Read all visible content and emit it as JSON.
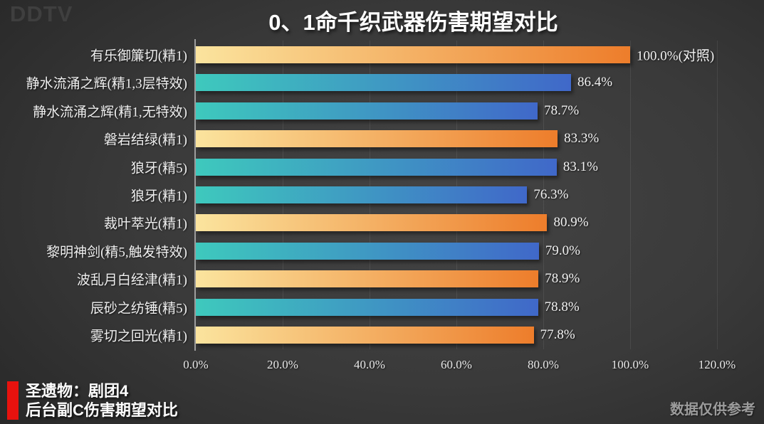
{
  "watermark": "DDTV",
  "title": "0、1命千织武器伤害期望对比",
  "chart_data": {
    "type": "bar",
    "orientation": "horizontal",
    "title": "0、1命千织武器伤害期望对比",
    "xlim": [
      0,
      120
    ],
    "grid": true,
    "legend": "none",
    "x_tick_labels": [
      "0.0%",
      "20.0%",
      "40.0%",
      "60.0%",
      "80.0%",
      "100.0%",
      "120.0%"
    ],
    "categories": [
      "有乐御簾切(精1)",
      "静水流涌之辉(精1,3层特效)",
      "静水流涌之辉(精1,无特效)",
      "磐岩结绿(精1)",
      "狼牙(精5)",
      "狼牙(精1)",
      "裁叶萃光(精1)",
      "黎明神剑(精5,触发特效)",
      "波乱月白经津(精1)",
      "辰砂之纺锤(精5)",
      "雾切之回光(精1)"
    ],
    "values": [
      100.0,
      86.4,
      78.7,
      83.3,
      83.1,
      76.3,
      80.9,
      79.0,
      78.9,
      78.8,
      77.8
    ],
    "value_labels": [
      "100.0%(对照)",
      "86.4%",
      "78.7%",
      "83.3%",
      "83.1%",
      "76.3%",
      "80.9%",
      "79.0%",
      "78.9%",
      "78.8%",
      "77.8%"
    ],
    "bar_palette": [
      "orange",
      "teal",
      "teal",
      "orange",
      "teal",
      "teal",
      "orange",
      "teal",
      "orange",
      "teal",
      "orange"
    ],
    "palette_colors": {
      "orange": {
        "start": "#FBE49E",
        "end": "#ED7D2B"
      },
      "teal": {
        "start": "#3EC9BD",
        "end": "#4068C9"
      }
    }
  },
  "footer": {
    "left_line1": "圣遗物：剧团4",
    "left_line2": "后台副C伤害期望对比",
    "right_note": "数据仅供参考",
    "accent_color": "#E8120E"
  }
}
